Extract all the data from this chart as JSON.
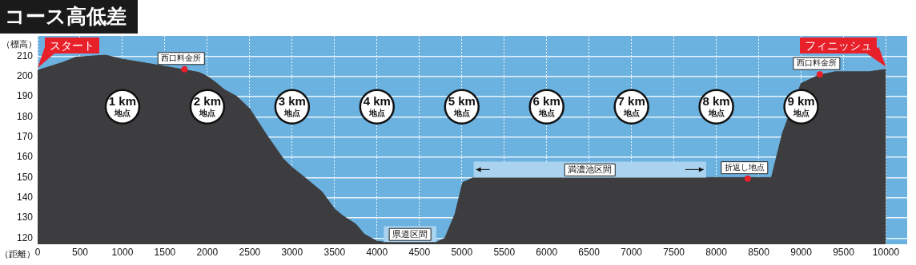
{
  "chart_data": {
    "type": "area",
    "title": "コース高低差",
    "xlabel": "（距離）",
    "ylabel": "（標高）",
    "x": [
      0,
      150,
      300,
      450,
      800,
      1000,
      1500,
      1900,
      2000,
      2100,
      2200,
      2350,
      2500,
      2700,
      2900,
      3000,
      3150,
      3350,
      3500,
      3600,
      3750,
      3850,
      4000,
      4100,
      4700,
      4800,
      4920,
      5010,
      5140,
      8650,
      8780,
      9000,
      9200,
      9400,
      9800,
      10000
    ],
    "series": [
      {
        "color": "#3d3d3f",
        "values": [
          203,
          205,
          207,
          209.5,
          210.5,
          208.5,
          205,
          202,
          200,
          197,
          193.5,
          190,
          184,
          171,
          159,
          155,
          150,
          143,
          134.5,
          131,
          127,
          122,
          118.5,
          118,
          118,
          120,
          132,
          147.5,
          150,
          150,
          172,
          196.5,
          200.5,
          202.3,
          202.3,
          203.5
        ]
      }
    ],
    "xlim": [
      0,
      10250
    ],
    "ylim": [
      117,
      220
    ],
    "xticks": [
      0,
      500,
      1000,
      1500,
      2000,
      2500,
      3000,
      3500,
      4000,
      4500,
      5000,
      5500,
      6000,
      6500,
      7000,
      7500,
      8000,
      8500,
      9000,
      9500,
      10000
    ],
    "yticks": [
      120,
      130,
      140,
      150,
      160,
      170,
      180,
      190,
      200,
      210
    ],
    "grid": true,
    "annotations": [
      {
        "text": "スタート",
        "x": 0,
        "y": 203
      },
      {
        "text": "フィニッシュ",
        "x": 10000,
        "y": 203.5
      },
      {
        "text": "西口料金所",
        "x": 1730,
        "y": 203.5
      },
      {
        "text": "西口料金所",
        "x": 9220,
        "y": 201
      },
      {
        "text": "折返し地点",
        "x": 8370,
        "y": 149.5
      },
      {
        "text": "1 km\n地点",
        "x": 1000
      },
      {
        "text": "2 km\n地点",
        "x": 2000
      },
      {
        "text": "3 km\n地点",
        "x": 3000
      },
      {
        "text": "4 km\n地点",
        "x": 4000
      },
      {
        "text": "5 km\n地点",
        "x": 5000
      },
      {
        "text": "6 km\n地点",
        "x": 6000
      },
      {
        "text": "7 km\n地点",
        "x": 7000
      },
      {
        "text": "8 km\n地点",
        "x": 8000
      },
      {
        "text": "9 km\n地点",
        "x": 9000
      }
    ],
    "bands": [
      {
        "axis": "x",
        "from": 4080,
        "to": 4700,
        "label": "県道区間",
        "color": "#a9d3ef"
      },
      {
        "axis": "x",
        "from": 5140,
        "to": 7880,
        "label": "満濃池区間",
        "color": "#a9d3ef"
      }
    ]
  }
}
